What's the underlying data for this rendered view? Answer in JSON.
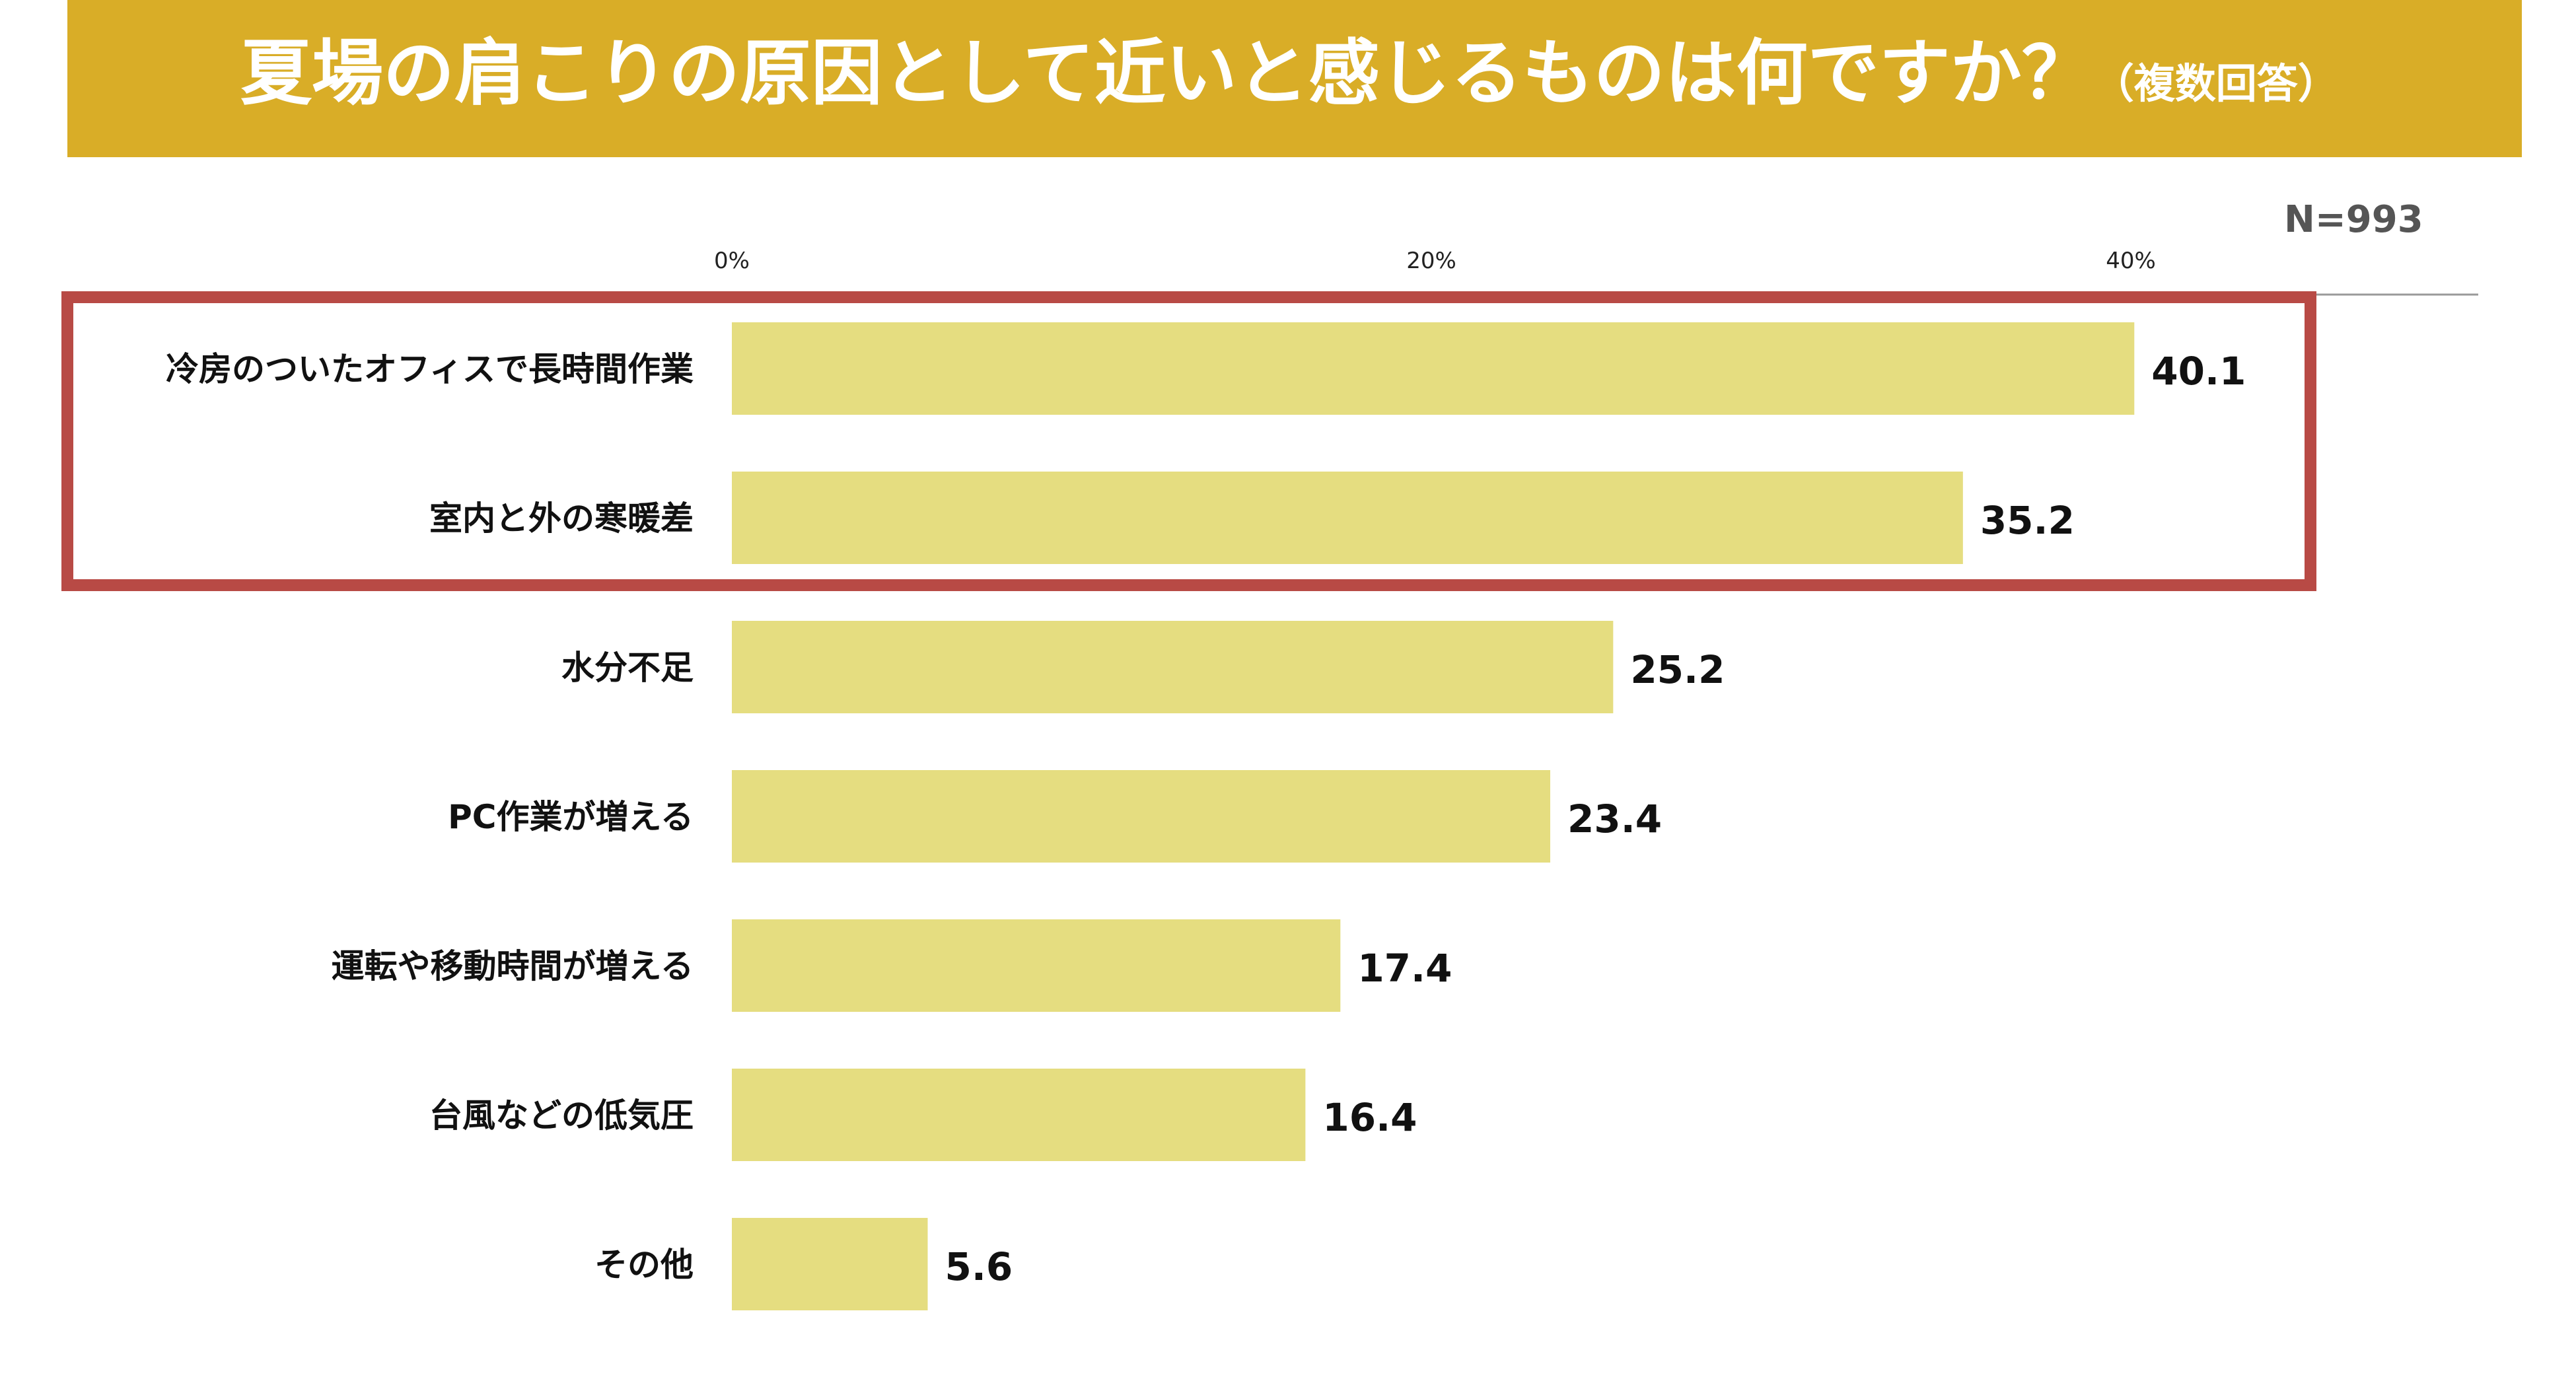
{
  "title": {
    "main": "夏場の肩こりの原因として近いと感じるものは何ですか？",
    "sub": "（複数回答）"
  },
  "sample_size": "N=993",
  "colors": {
    "banner": "#d9ad27",
    "bar": "#e5dd80",
    "highlight_box": "#b84a45",
    "axis_line": "#9a9a9a",
    "text": "#111111"
  },
  "chart_data": {
    "type": "bar",
    "orientation": "horizontal",
    "unit": "%",
    "xlim": [
      0,
      50
    ],
    "ticks": [
      {
        "value": 0,
        "label": "0%"
      },
      {
        "value": 20,
        "label": "20%"
      },
      {
        "value": 40,
        "label": "40%"
      }
    ],
    "categories": [
      "冷房のついたオフィスで長時間作業",
      "室内と外の寒暖差",
      "水分不足",
      "PC作業が増える",
      "運転や移動時間が増える",
      "台風などの低気圧",
      "その他"
    ],
    "values": [
      40.1,
      35.2,
      25.2,
      23.4,
      17.4,
      16.4,
      5.6
    ],
    "value_labels": [
      "40.1",
      "35.2",
      "25.2",
      "23.4",
      "17.4",
      "16.4",
      "5.6"
    ],
    "highlighted_categories": [
      0,
      1
    ],
    "grid": false
  }
}
